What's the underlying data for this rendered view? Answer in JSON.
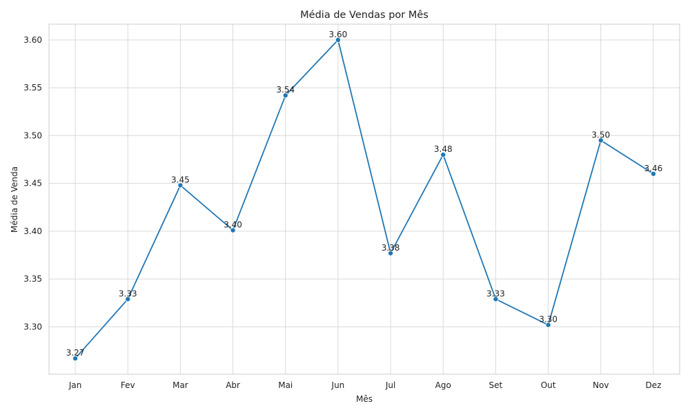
{
  "chart_data": {
    "type": "line",
    "title": "Média de Vendas por Mês",
    "xlabel": "Mês",
    "ylabel": "Média de Venda",
    "categories": [
      "Jan",
      "Fev",
      "Mar",
      "Abr",
      "Mai",
      "Jun",
      "Jul",
      "Ago",
      "Set",
      "Out",
      "Nov",
      "Dez"
    ],
    "values": [
      3.267,
      3.329,
      3.448,
      3.401,
      3.542,
      3.6,
      3.377,
      3.48,
      3.329,
      3.302,
      3.495,
      3.46
    ],
    "data_labels": [
      "3.27",
      "3.33",
      "3.45",
      "3.40",
      "3.54",
      "3.60",
      "3.38",
      "3.48",
      "3.33",
      "3.30",
      "3.50",
      "3.46"
    ],
    "yticks": [
      3.3,
      3.35,
      3.4,
      3.45,
      3.5,
      3.55,
      3.6
    ],
    "ytick_labels": [
      "3.30",
      "3.35",
      "3.40",
      "3.45",
      "3.50",
      "3.55",
      "3.60"
    ],
    "ylim": [
      3.2505,
      3.6165
    ],
    "grid": true,
    "legend": "none",
    "colors": {
      "line": "#1f77b4",
      "grid": "#d9d9d9",
      "spine": "#cccccc",
      "text": "#222222"
    }
  }
}
